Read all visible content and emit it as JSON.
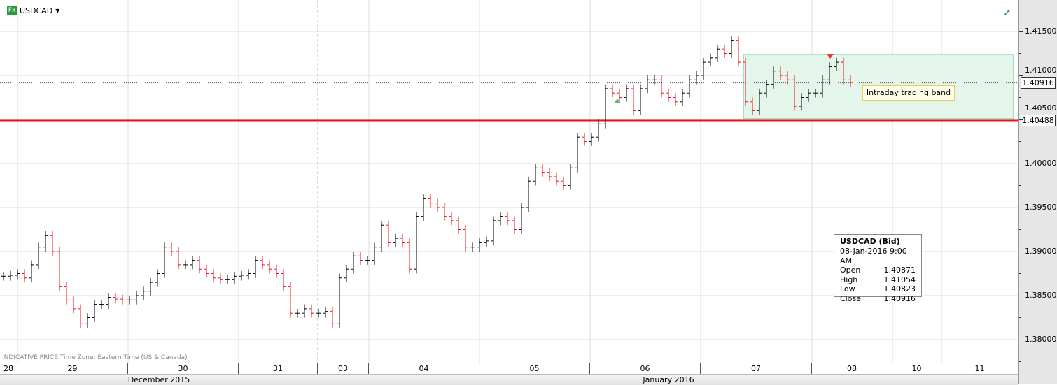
{
  "header": {
    "symbol": "USDCAD",
    "dropdown_icon": "caret-down-icon",
    "app_icon_label": "Fx",
    "trend_icon": "trend-up-arrow-icon"
  },
  "footnote": "INDICATIVE PRICE   Time Zone: Eastern Time (US & Canada)",
  "info": {
    "title": "USDCAD (Bid)",
    "datetime": "08-Jan-2016 9:00 AM",
    "rows": [
      {
        "label": "Open",
        "value": "1.40871"
      },
      {
        "label": "High",
        "value": "1.41054"
      },
      {
        "label": "Low",
        "value": "1.40823"
      },
      {
        "label": "Close",
        "value": "1.40916"
      }
    ]
  },
  "annotation": {
    "label": "Intraday trading band",
    "band_top": 1.41238,
    "band_bottom": 1.40508
  },
  "price_tags": {
    "last": "1.40916",
    "level": "1.40488"
  },
  "colors": {
    "up": "#000000",
    "down": "#e8141e",
    "level_line": "#e8141e",
    "band_fill": "#e4f6ec",
    "band_border": "#5ccf8e"
  },
  "x_axis": {
    "days": [
      "28",
      "29",
      "30",
      "31",
      "03",
      "04",
      "05",
      "06",
      "07",
      "08",
      "10",
      "11"
    ],
    "months": [
      "December 2015",
      "January 2016"
    ]
  },
  "chart_data": {
    "type": "ohlc",
    "symbol": "USDCAD",
    "ylim": [
      1.3775,
      1.4175
    ],
    "y_ticks": [
      "1.41500",
      "1.41000",
      "1.40500",
      "1.40000",
      "1.39500",
      "1.39000",
      "1.38500",
      "1.38000"
    ],
    "grid": true,
    "horizontal_lines": [
      {
        "value": 1.40488,
        "style": "solid",
        "color": "red"
      },
      {
        "value": 1.40916,
        "style": "dotted"
      }
    ],
    "markers": [
      {
        "type": "up-triangle",
        "near_value": 1.4068,
        "color": "green"
      },
      {
        "type": "down-triangle",
        "near_value": 1.4124,
        "color": "red"
      }
    ],
    "close": [
      1.3872,
      1.3873,
      1.3875,
      1.387,
      1.3885,
      1.3905,
      1.3918,
      1.39,
      1.386,
      1.3845,
      1.3835,
      1.3818,
      1.3825,
      1.384,
      1.384,
      1.3848,
      1.3846,
      1.3845,
      1.3845,
      1.385,
      1.3855,
      1.3865,
      1.3875,
      1.3905,
      1.39,
      1.3885,
      1.3885,
      1.389,
      1.388,
      1.3875,
      1.387,
      1.3868,
      1.3868,
      1.3872,
      1.3873,
      1.3875,
      1.389,
      1.3885,
      1.388,
      1.3875,
      1.386,
      1.383,
      1.383,
      1.3835,
      1.383,
      1.383,
      1.3832,
      1.3818,
      1.387,
      1.388,
      1.3895,
      1.389,
      1.389,
      1.3905,
      1.393,
      1.391,
      1.3915,
      1.391,
      1.388,
      1.394,
      1.396,
      1.3955,
      1.395,
      1.394,
      1.3935,
      1.3925,
      1.3905,
      1.3905,
      1.391,
      1.3912,
      1.3935,
      1.394,
      1.3935,
      1.3925,
      1.395,
      1.398,
      1.3995,
      1.399,
      1.3985,
      1.398,
      1.3975,
      1.3995,
      1.403,
      1.4025,
      1.403,
      1.4045,
      1.4085,
      1.408,
      1.4075,
      1.4085,
      1.406,
      1.4085,
      1.4095,
      1.4095,
      1.408,
      1.4075,
      1.407,
      1.408,
      1.4095,
      1.41,
      1.4115,
      1.412,
      1.413,
      1.4125,
      1.414,
      1.4115,
      1.407,
      1.406,
      1.408,
      1.409,
      1.4105,
      1.41,
      1.4095,
      1.4065,
      1.4075,
      1.408,
      1.408,
      1.4095,
      1.411,
      1.4115,
      1.4095,
      1.4092
    ]
  }
}
